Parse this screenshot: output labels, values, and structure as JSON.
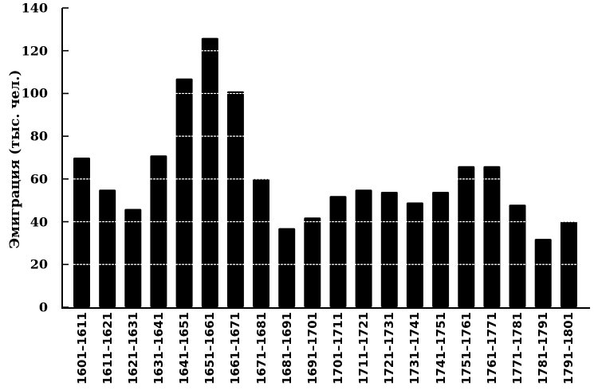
{
  "chart_data": {
    "type": "bar",
    "title": "",
    "xlabel": "",
    "ylabel": "Эмиграция (тыс. чел.)",
    "ylim": [
      0,
      140
    ],
    "yticks": [
      0,
      20,
      40,
      60,
      80,
      100,
      120,
      140
    ],
    "grid": "white horizontal lines through bars at each tick",
    "legend": null,
    "bar_color": "#000000",
    "categories": [
      "1601–1611",
      "1611–1621",
      "1621–1631",
      "1631–1641",
      "1641–1651",
      "1651–1661",
      "1661–1671",
      "1671–1681",
      "1681–1691",
      "1691–1701",
      "1701–1711",
      "1711–1721",
      "1721–1731",
      "1731–1741",
      "1741–1751",
      "1751–1761",
      "1761–1771",
      "1771–1781",
      "1781–1791",
      "1791–1801"
    ],
    "values": [
      70,
      55,
      46,
      71,
      107,
      126,
      101,
      60,
      37,
      42,
      52,
      55,
      54,
      49,
      54,
      66,
      66,
      48,
      32,
      40
    ]
  }
}
